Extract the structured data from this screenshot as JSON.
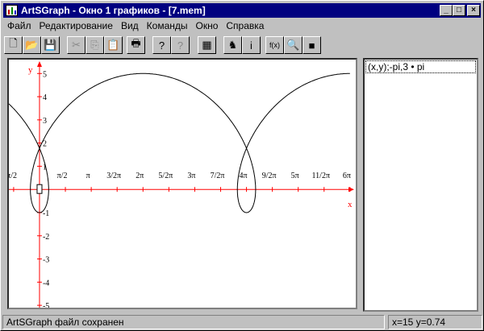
{
  "window": {
    "title": "ArtSGraph - Окно 1 графиков - [7.mem]",
    "controls": [
      "minimize",
      "maximize",
      "close"
    ]
  },
  "menu": [
    {
      "label": "Файл"
    },
    {
      "label": "Редактирование"
    },
    {
      "label": "Вид"
    },
    {
      "label": "Команды"
    },
    {
      "label": "Окно"
    },
    {
      "label": "Справка"
    }
  ],
  "toolbar": [
    {
      "icon": "new-icon",
      "glyph": "🗋",
      "enabled": true
    },
    {
      "icon": "open-icon",
      "glyph": "📂",
      "enabled": true
    },
    {
      "icon": "save-icon",
      "glyph": "💾",
      "enabled": true
    },
    {
      "icon": "cut-icon",
      "glyph": "✂",
      "enabled": false
    },
    {
      "icon": "copy-icon",
      "glyph": "⎘",
      "enabled": false
    },
    {
      "icon": "paste-icon",
      "glyph": "📋",
      "enabled": false
    },
    {
      "icon": "print-icon",
      "glyph": "🖶",
      "enabled": true
    },
    {
      "icon": "help-icon",
      "glyph": "?",
      "enabled": true
    },
    {
      "icon": "context-help-icon",
      "glyph": "?",
      "enabled": false
    },
    {
      "icon": "graph-window-icon",
      "glyph": "▦",
      "enabled": true
    },
    {
      "icon": "animate-icon",
      "glyph": "♞",
      "enabled": true
    },
    {
      "icon": "info-icon",
      "glyph": "i",
      "enabled": true
    },
    {
      "icon": "function-icon",
      "glyph": "f(x)",
      "enabled": true
    },
    {
      "icon": "zoom-icon",
      "glyph": "🔍",
      "enabled": true
    },
    {
      "icon": "3d-cube-icon",
      "glyph": "■",
      "enabled": true
    }
  ],
  "functions_list": [
    {
      "label": "(x,y);-pi,3 • pi"
    }
  ],
  "status": {
    "message": "ArtSGraph файл сохранен",
    "coords": "x=15 y=0.74"
  },
  "chart_data": {
    "type": "line",
    "parametric": {
      "x": "2t - 3 sin t",
      "y": "2 - 3 cos t",
      "t_range": [
        "-pi",
        "3*pi"
      ]
    },
    "xlabel": "x",
    "ylabel": "y",
    "x_ticks": [
      {
        "value": -1.5708,
        "label": "-π/2"
      },
      {
        "value": 1.5708,
        "label": "π/2"
      },
      {
        "value": 3.1416,
        "label": "π"
      },
      {
        "value": 4.7124,
        "label": "3/2π"
      },
      {
        "value": 6.2832,
        "label": "2π"
      },
      {
        "value": 7.854,
        "label": "5/2π"
      },
      {
        "value": 9.4248,
        "label": "3π"
      },
      {
        "value": 10.9956,
        "label": "7/2π"
      },
      {
        "value": 12.5664,
        "label": "4π"
      },
      {
        "value": 14.1372,
        "label": "9/2π"
      },
      {
        "value": 15.708,
        "label": "5π"
      },
      {
        "value": 17.2788,
        "label": "11/2π"
      },
      {
        "value": 18.8496,
        "label": "6π"
      }
    ],
    "y_ticks": [
      -5,
      -4,
      -3,
      -2,
      -1,
      1,
      2,
      3,
      4,
      5
    ],
    "xlim": [
      -1.86,
      19.2
    ],
    "ylim": [
      -5.1,
      5.6
    ],
    "colors": {
      "axes": "#ff0000",
      "curve": "#000000"
    }
  }
}
